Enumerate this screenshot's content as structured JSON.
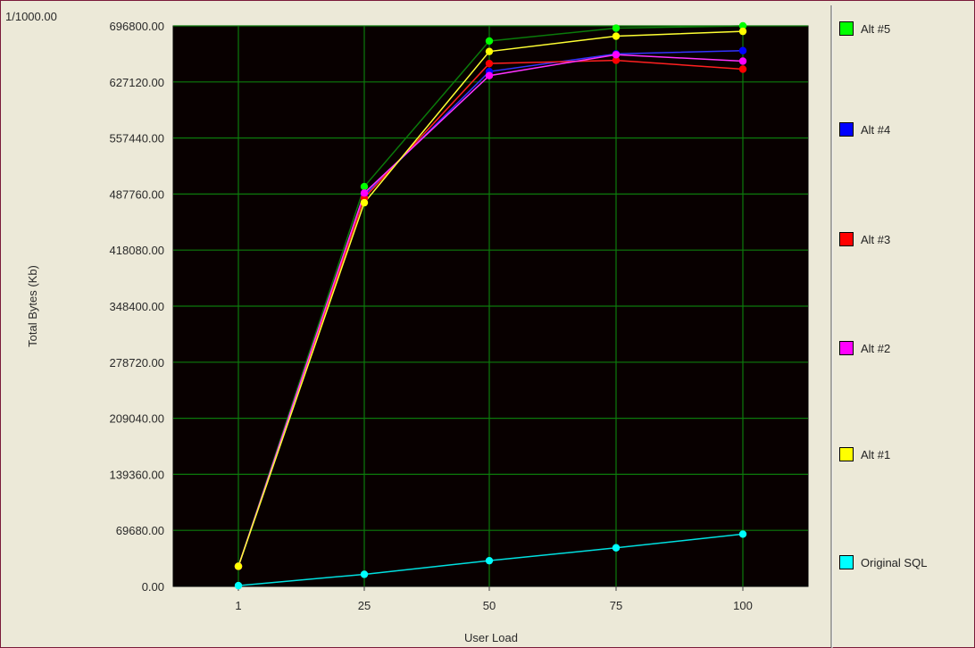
{
  "scale_label": "1/1000.00",
  "colors": {
    "frame_bg": "#ece9d8",
    "plot_bg": "#080000",
    "grid": "#0c7a0c",
    "border": "#7a1a3a"
  },
  "legend": {
    "placement": "right",
    "items": [
      {
        "label": "Alt #5",
        "color": "#00ff00"
      },
      {
        "label": "Alt #4",
        "color": "#0000ff"
      },
      {
        "label": "Alt #3",
        "color": "#ff0000"
      },
      {
        "label": "Alt #2",
        "color": "#ff00ff"
      },
      {
        "label": "Alt #1",
        "color": "#ffff00"
      },
      {
        "label": "Original SQL",
        "color": "#00ffff"
      }
    ]
  },
  "chart_data": {
    "type": "line",
    "title": "",
    "xlabel": "User Load",
    "ylabel": "Total Bytes (Kb)",
    "categories": [
      "1",
      "25",
      "50",
      "75",
      "100"
    ],
    "ylim": [
      0,
      696800
    ],
    "yticks": [
      "0.00",
      "69680.00",
      "139360.00",
      "209040.00",
      "278720.00",
      "348400.00",
      "418080.00",
      "487760.00",
      "557440.00",
      "627120.00",
      "696800.00"
    ],
    "grid": true,
    "series": [
      {
        "name": "Alt #5",
        "color": "#00ff00",
        "line_color": "#0a7a0a",
        "values": [
          25000,
          497000,
          678000,
          694000,
          696800
        ]
      },
      {
        "name": "Alt #4",
        "color": "#0000ff",
        "line_color": "#3333ff",
        "values": [
          25000,
          486000,
          640000,
          662000,
          666000
        ]
      },
      {
        "name": "Alt #3",
        "color": "#ff0000",
        "line_color": "#ff2020",
        "values": [
          25000,
          483000,
          650000,
          654000,
          643000
        ]
      },
      {
        "name": "Alt #2",
        "color": "#ff00ff",
        "line_color": "#ff33ff",
        "values": [
          25000,
          489000,
          635000,
          661000,
          653000
        ]
      },
      {
        "name": "Alt #1",
        "color": "#ffff00",
        "line_color": "#ffff33",
        "values": [
          25000,
          477000,
          665000,
          684000,
          690000
        ]
      },
      {
        "name": "Original SQL",
        "color": "#00ffff",
        "line_color": "#00e0e0",
        "values": [
          1000,
          15000,
          32000,
          48000,
          65000
        ]
      }
    ]
  }
}
